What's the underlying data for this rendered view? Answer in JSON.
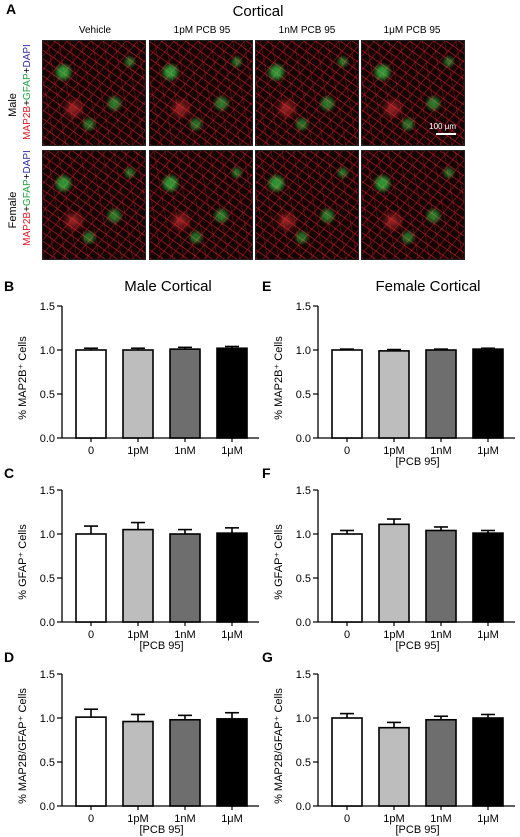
{
  "panel_a": {
    "letter": "A",
    "title": "Cortical",
    "columns": [
      "Vehicle",
      "1pM PCB 95",
      "1nM PCB 95",
      "1μM PCB 95"
    ],
    "rows": [
      {
        "sex": "Male",
        "stain": {
          "red": "MAP2B",
          "plus1": "+",
          "green": "GFAP",
          "plus2": "+",
          "blue": "DAPI"
        }
      },
      {
        "sex": "Female",
        "stain": {
          "red": "MAP2B",
          "plus1": "+",
          "green": "GFAP",
          "plus2": "+",
          "blue": "DAPI"
        }
      }
    ],
    "scale_bar": "100 μm",
    "colors": {
      "red": "#e8141e",
      "green": "#19a33a",
      "blue": "#2a2aa8"
    }
  },
  "chart_data": [
    {
      "letter": "B",
      "type": "bar",
      "title": "Male Cortical",
      "ylabel": "% MAP2B⁺ Cells",
      "xlabel": "",
      "categories": [
        "0",
        "1pM",
        "1nM",
        "1μM"
      ],
      "values": [
        1.0,
        1.0,
        1.01,
        1.02
      ],
      "errors": [
        0.02,
        0.02,
        0.02,
        0.02
      ],
      "ylim": [
        0,
        1.5
      ],
      "yticks": [
        "0.0",
        "0.5",
        "1.0",
        "1.5"
      ]
    },
    {
      "letter": "E",
      "type": "bar",
      "title": "Female Cortical",
      "ylabel": "% MAP2B⁺ Cells",
      "xlabel": "[PCB 95]",
      "categories": [
        "0",
        "1pM",
        "1nM",
        "1μM"
      ],
      "values": [
        1.0,
        0.99,
        1.0,
        1.01
      ],
      "errors": [
        0.01,
        0.015,
        0.01,
        0.01
      ],
      "ylim": [
        0,
        1.5
      ],
      "yticks": [
        "0.0",
        "0.5",
        "1.0",
        "1.5"
      ]
    },
    {
      "letter": "C",
      "type": "bar",
      "title": "",
      "ylabel": "% GFAP⁺ Cells",
      "xlabel": "[PCB 95]",
      "categories": [
        "0",
        "1pM",
        "1nM",
        "1μM"
      ],
      "values": [
        1.0,
        1.05,
        1.0,
        1.01
      ],
      "errors": [
        0.09,
        0.08,
        0.05,
        0.06
      ],
      "ylim": [
        0,
        1.5
      ],
      "yticks": [
        "0.0",
        "0.5",
        "1.0",
        "1.5"
      ]
    },
    {
      "letter": "F",
      "type": "bar",
      "title": "",
      "ylabel": "% GFAP⁺ Cells",
      "xlabel": "[PCB 95]",
      "categories": [
        "0",
        "1pM",
        "1nM",
        "1μM"
      ],
      "values": [
        1.0,
        1.11,
        1.04,
        1.01
      ],
      "errors": [
        0.04,
        0.06,
        0.04,
        0.03
      ],
      "ylim": [
        0,
        1.5
      ],
      "yticks": [
        "0.0",
        "0.5",
        "1.0",
        "1.5"
      ]
    },
    {
      "letter": "D",
      "type": "bar",
      "title": "",
      "ylabel": "% MAP2B/GFAP⁺ Cells",
      "xlabel": "[PCB 95]",
      "categories": [
        "0",
        "1pM",
        "1nM",
        "1μM"
      ],
      "values": [
        1.01,
        0.96,
        0.98,
        0.99
      ],
      "errors": [
        0.09,
        0.08,
        0.05,
        0.07
      ],
      "ylim": [
        0,
        1.5
      ],
      "yticks": [
        "0.0",
        "0.5",
        "1.0",
        "1.5"
      ]
    },
    {
      "letter": "G",
      "type": "bar",
      "title": "",
      "ylabel": "% MAP2B/GFAP⁺ Cells",
      "xlabel": "[PCB 95]",
      "categories": [
        "0",
        "1pM",
        "1nM",
        "1μM"
      ],
      "values": [
        1.0,
        0.89,
        0.98,
        1.0
      ],
      "errors": [
        0.05,
        0.06,
        0.04,
        0.04
      ],
      "ylim": [
        0,
        1.5
      ],
      "yticks": [
        "0.0",
        "0.5",
        "1.0",
        "1.5"
      ]
    }
  ],
  "bar_colors": [
    "#ffffff",
    "#bdbdbd",
    "#6e6e6e",
    "#000000"
  ]
}
